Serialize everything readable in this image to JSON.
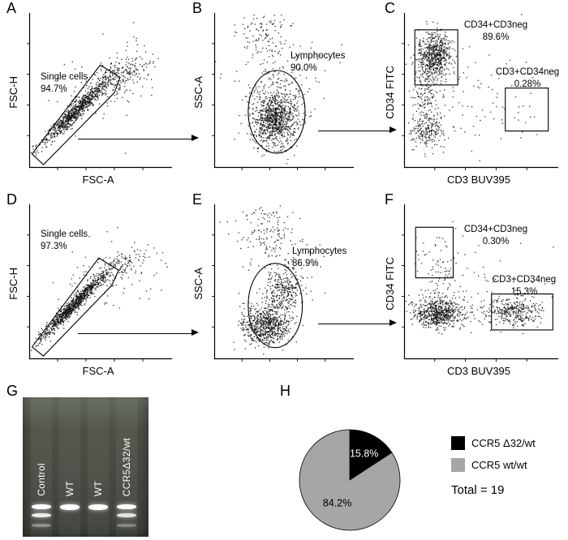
{
  "panels": {
    "a": {
      "letter": "A",
      "ylabel": "FSC-H",
      "xlabel": "FSC-A",
      "gate_name": "Single cells",
      "gate_pct": "94.7%"
    },
    "b": {
      "letter": "B",
      "ylabel": "SSC-A",
      "gate_name": "Lymphocytes",
      "gate_pct": "90.0%"
    },
    "c": {
      "letter": "C",
      "ylabel": "CD34 FITC",
      "xlabel": "CD3 BUV395",
      "gate1_name": "CD34+CD3neg",
      "gate1_pct": "89.6%",
      "gate2_name": "CD3+CD34neg",
      "gate2_pct": "0.28%"
    },
    "d": {
      "letter": "D",
      "ylabel": "FSC-H",
      "xlabel": "FSC-A",
      "gate_name": "Single cells",
      "gate_pct": "97.3%"
    },
    "e": {
      "letter": "E",
      "ylabel": "SSC-A",
      "gate_name": "Lymphocytes",
      "gate_pct": "86.9%"
    },
    "f": {
      "letter": "F",
      "ylabel": "CD34 FITC",
      "xlabel": "CD3 BUV395",
      "gate1_name": "CD34+CD3neg",
      "gate1_pct": "0.30%",
      "gate2_name": "CD3+CD34neg",
      "gate2_pct": "15.3%"
    }
  },
  "gel": {
    "letter": "G",
    "lanes": [
      {
        "label": "Control",
        "bands": [
          {
            "y": 0.765,
            "h": 6,
            "o": 1
          },
          {
            "y": 0.832,
            "h": 5,
            "o": 0.9
          },
          {
            "y": 0.905,
            "h": 4,
            "o": 0.4
          }
        ]
      },
      {
        "label": "WT",
        "bands": [
          {
            "y": 0.765,
            "h": 7,
            "o": 1
          }
        ]
      },
      {
        "label": "WT",
        "bands": [
          {
            "y": 0.765,
            "h": 7,
            "o": 1
          }
        ]
      },
      {
        "label": "CCR5Δ32/wt",
        "bands": [
          {
            "y": 0.765,
            "h": 6,
            "o": 1
          },
          {
            "y": 0.832,
            "h": 5,
            "o": 0.85
          },
          {
            "y": 0.905,
            "h": 4,
            "o": 0.35
          }
        ]
      }
    ]
  },
  "pie": {
    "letter": "H",
    "legend": [
      {
        "label": "CCR5 Δ32/wt",
        "color": "#000000"
      },
      {
        "label": "CCR5 wt/wt",
        "color": "#a6a6a6"
      }
    ],
    "total_label": "Total = 19"
  },
  "chart_data": [
    {
      "type": "scatter",
      "subtype": "flow-cytometry",
      "panel": "a",
      "xlabel": "FSC-A",
      "ylabel": "FSC-H",
      "gates": [
        {
          "label": "Single cells",
          "percent": 94.7,
          "shape": "polygon",
          "points": [
            [
              0.02,
              0.92
            ],
            [
              0.5,
              0.34
            ],
            [
              0.64,
              0.42
            ],
            [
              0.6,
              0.52
            ],
            [
              0.1,
              0.99
            ]
          ]
        }
      ],
      "clusters": [
        {
          "n": 850,
          "cx": 0.32,
          "cy": 0.645,
          "sx": 0.155,
          "sy": 0.022,
          "rot": -42
        },
        {
          "n": 220,
          "cx": 0.6,
          "cy": 0.42,
          "sx": 0.13,
          "sy": 0.05,
          "rot": -25
        },
        {
          "n": 120,
          "cx": 0.62,
          "cy": 0.42,
          "sx": 0.22,
          "sy": 0.13,
          "rot": -18
        }
      ]
    },
    {
      "type": "scatter",
      "subtype": "flow-cytometry",
      "panel": "b",
      "xlabel": "",
      "ylabel": "SSC-A",
      "gates": [
        {
          "label": "Lymphocytes",
          "percent": 90.0,
          "shape": "ellipse",
          "cx": 0.45,
          "cy": 0.645,
          "rx": 0.205,
          "ry": 0.27
        }
      ],
      "clusters": [
        {
          "n": 750,
          "cx": 0.44,
          "cy": 0.67,
          "sx": 0.095,
          "sy": 0.115
        },
        {
          "n": 300,
          "cx": 0.43,
          "cy": 0.7,
          "sx": 0.05,
          "sy": 0.06
        },
        {
          "n": 120,
          "cx": 0.36,
          "cy": 0.14,
          "sx": 0.1,
          "sy": 0.11
        },
        {
          "n": 70,
          "cx": 0.46,
          "cy": 0.38,
          "sx": 0.17,
          "sy": 0.13
        }
      ]
    },
    {
      "type": "scatter",
      "subtype": "flow-cytometry",
      "panel": "c",
      "xlabel": "CD3 BUV395",
      "ylabel": "CD34 FITC",
      "gates": [
        {
          "label": "CD34+CD3neg",
          "percent": 89.6,
          "shape": "rect",
          "x": 0.07,
          "y": 0.11,
          "w": 0.28,
          "h": 0.36
        },
        {
          "label": "CD3+CD34neg",
          "percent": 0.28,
          "shape": "rect",
          "x": 0.66,
          "y": 0.49,
          "w": 0.28,
          "h": 0.28
        }
      ],
      "clusters": [
        {
          "n": 620,
          "cx": 0.2,
          "cy": 0.27,
          "sx": 0.055,
          "sy": 0.075
        },
        {
          "n": 200,
          "cx": 0.135,
          "cy": 0.55,
          "sx": 0.045,
          "sy": 0.15
        },
        {
          "n": 170,
          "cx": 0.16,
          "cy": 0.77,
          "sx": 0.065,
          "sy": 0.055
        },
        {
          "n": 90,
          "cx": 0.45,
          "cy": 0.55,
          "sx": 0.22,
          "sy": 0.17
        },
        {
          "n": 10,
          "cx": 0.79,
          "cy": 0.63,
          "sx": 0.05,
          "sy": 0.05
        }
      ]
    },
    {
      "type": "scatter",
      "subtype": "flow-cytometry",
      "panel": "d",
      "xlabel": "FSC-A",
      "ylabel": "FSC-H",
      "gates": [
        {
          "label": "Single cells",
          "percent": 97.3,
          "shape": "polygon",
          "points": [
            [
              0.02,
              0.93
            ],
            [
              0.49,
              0.35
            ],
            [
              0.63,
              0.43
            ],
            [
              0.58,
              0.53
            ],
            [
              0.1,
              0.99
            ]
          ]
        }
      ],
      "clusters": [
        {
          "n": 950,
          "cx": 0.31,
          "cy": 0.655,
          "sx": 0.155,
          "sy": 0.018,
          "rot": -43
        },
        {
          "n": 150,
          "cx": 0.62,
          "cy": 0.4,
          "sx": 0.13,
          "sy": 0.045,
          "rot": -25
        },
        {
          "n": 80,
          "cx": 0.6,
          "cy": 0.44,
          "sx": 0.2,
          "sy": 0.12,
          "rot": -18
        }
      ]
    },
    {
      "type": "scatter",
      "subtype": "flow-cytometry",
      "panel": "e",
      "xlabel": "",
      "ylabel": "SSC-A",
      "gates": [
        {
          "label": "Lymphocytes",
          "percent": 86.9,
          "shape": "ellipse",
          "cx": 0.44,
          "cy": 0.66,
          "rx": 0.195,
          "ry": 0.275
        }
      ],
      "clusters": [
        {
          "n": 700,
          "cx": 0.37,
          "cy": 0.79,
          "sx": 0.085,
          "sy": 0.065
        },
        {
          "n": 300,
          "cx": 0.5,
          "cy": 0.56,
          "sx": 0.07,
          "sy": 0.075
        },
        {
          "n": 140,
          "cx": 0.37,
          "cy": 0.13,
          "sx": 0.1,
          "sy": 0.11
        },
        {
          "n": 70,
          "cx": 0.45,
          "cy": 0.38,
          "sx": 0.16,
          "sy": 0.13
        }
      ]
    },
    {
      "type": "scatter",
      "subtype": "flow-cytometry",
      "panel": "f",
      "xlabel": "CD3 BUV395",
      "ylabel": "CD34 FITC",
      "gates": [
        {
          "label": "CD34+CD3neg",
          "percent": 0.3,
          "shape": "rect",
          "x": 0.075,
          "y": 0.15,
          "w": 0.245,
          "h": 0.33
        },
        {
          "label": "CD3+CD34neg",
          "percent": 15.3,
          "shape": "rect",
          "x": 0.57,
          "y": 0.585,
          "w": 0.4,
          "h": 0.235
        }
      ],
      "clusters": [
        {
          "n": 600,
          "cx": 0.215,
          "cy": 0.705,
          "sx": 0.075,
          "sy": 0.05
        },
        {
          "n": 300,
          "cx": 0.72,
          "cy": 0.7,
          "sx": 0.08,
          "sy": 0.045
        },
        {
          "n": 110,
          "cx": 0.46,
          "cy": 0.7,
          "sx": 0.2,
          "sy": 0.055
        },
        {
          "n": 70,
          "cx": 0.22,
          "cy": 0.5,
          "sx": 0.06,
          "sy": 0.13
        },
        {
          "n": 50,
          "cx": 0.45,
          "cy": 0.45,
          "sx": 0.2,
          "sy": 0.15
        },
        {
          "n": 6,
          "cx": 0.19,
          "cy": 0.3,
          "sx": 0.05,
          "sy": 0.06
        }
      ]
    },
    {
      "type": "pie",
      "values": [
        15.8,
        84.2
      ],
      "labels": [
        "CCR5 Δ32/wt",
        "CCR5 wt/wt"
      ],
      "colors": [
        "#000000",
        "#a6a6a6"
      ],
      "slice_labels": [
        "15.8%",
        "84.2%"
      ],
      "slice_label_colors": [
        "#ffffff",
        "#000000"
      ],
      "slice_label_r": [
        0.6,
        0.52
      ],
      "start_angle": -90,
      "annotation": "Total = 19",
      "legend_position": "right"
    }
  ]
}
